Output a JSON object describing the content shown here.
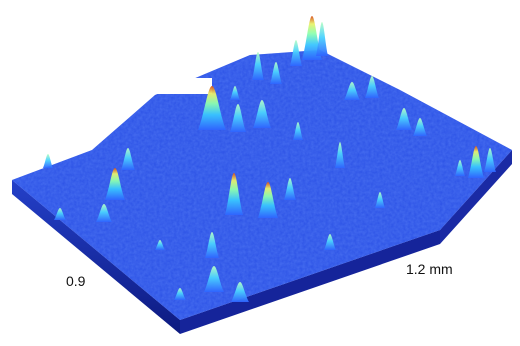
{
  "figure": {
    "kind": "3d-surface-topography-render",
    "colormap": [
      "#1b3fd6",
      "#2a74ff",
      "#3fd7ff",
      "#8fffa6",
      "#f2f05a",
      "#e85a1f",
      "#b40000"
    ],
    "background_color": "#ffffff"
  },
  "labels": {
    "depth_extent": "0.9",
    "width_extent": "1.2 mm"
  }
}
